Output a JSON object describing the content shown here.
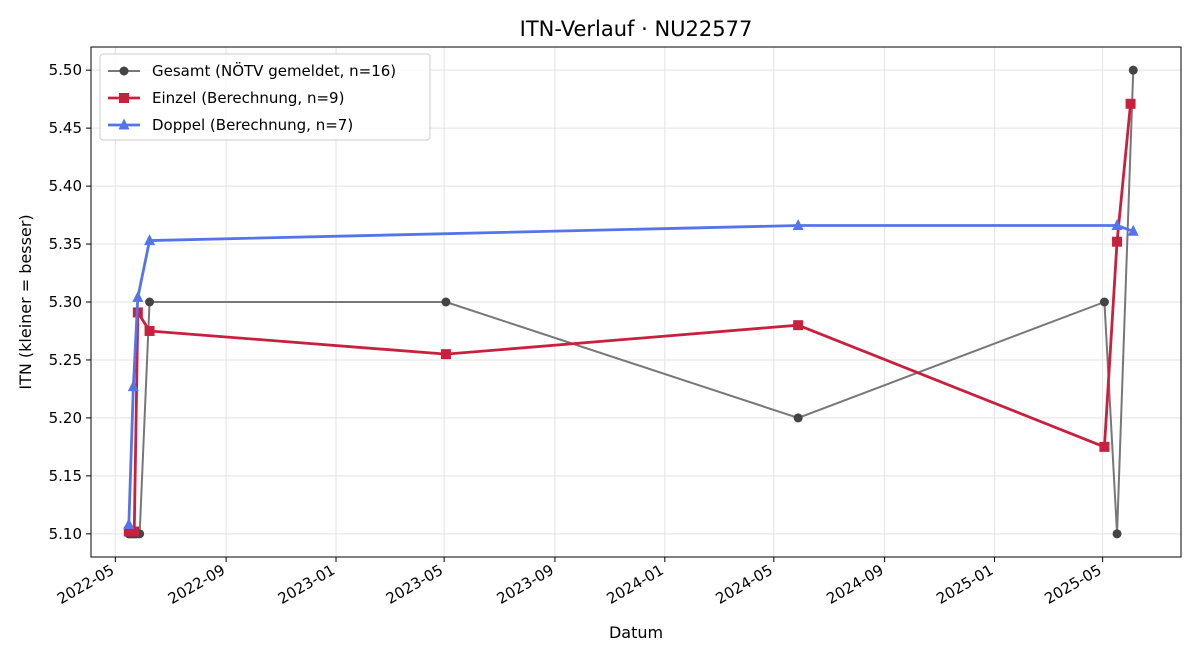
{
  "chart_data": {
    "type": "line",
    "title": "ITN-Verlauf · NU22577",
    "xlabel": "Datum",
    "ylabel": "ITN  (kleiner = besser)",
    "ylim": [
      5.08,
      5.52
    ],
    "xlim": [
      "2022-04-04",
      "2025-07-27"
    ],
    "x_is_date": true,
    "grid": true,
    "legend_position": "top-left",
    "x_ticks": [
      "2022-05",
      "2022-09",
      "2023-01",
      "2023-05",
      "2023-09",
      "2024-01",
      "2024-05",
      "2024-09",
      "2025-01",
      "2025-05"
    ],
    "x_tick_dates": [
      "2022-05-01",
      "2022-09-01",
      "2023-01-01",
      "2023-05-01",
      "2023-09-01",
      "2024-01-01",
      "2024-05-01",
      "2024-09-01",
      "2025-01-01",
      "2025-05-01"
    ],
    "y_ticks": [
      "5.10",
      "5.15",
      "5.20",
      "5.25",
      "5.30",
      "5.35",
      "5.40",
      "5.45",
      "5.50"
    ],
    "series": [
      {
        "name": "Gesamt (NÖTV gemeldet, n=16)",
        "color": "#777777",
        "marker_color": "#444444",
        "marker": "circle",
        "x": [
          "2022-05-16",
          "2022-05-18",
          "2022-05-20",
          "2022-05-22",
          "2022-05-24",
          "2022-05-28",
          "2022-06-08",
          "2023-05-03",
          "2024-05-28",
          "2025-05-03",
          "2025-05-17",
          "2025-06-04"
        ],
        "y": [
          5.1,
          5.1,
          5.1,
          5.1,
          5.1,
          5.1,
          5.3,
          5.3,
          5.2,
          5.3,
          5.1,
          5.5
        ]
      },
      {
        "name": "Einzel (Berechnung, n=9)",
        "color": "#c8213f",
        "marker_color": "#c8213f",
        "marker": "square",
        "x": [
          "2022-05-16",
          "2022-05-22",
          "2022-05-26",
          "2022-06-08",
          "2023-05-03",
          "2024-05-28",
          "2025-05-03",
          "2025-05-17",
          "2025-06-01"
        ],
        "y": [
          5.102,
          5.102,
          5.291,
          5.275,
          5.255,
          5.28,
          5.175,
          5.352,
          5.471
        ]
      },
      {
        "name": "Doppel (Berechnung, n=7)",
        "color": "#5574ea",
        "marker_color": "#5574ea",
        "marker": "triangle",
        "x": [
          "2022-05-16",
          "2022-05-21",
          "2022-05-26",
          "2022-06-08",
          "2024-05-28",
          "2025-05-17",
          "2025-06-04"
        ],
        "y": [
          5.108,
          5.227,
          5.304,
          5.353,
          5.366,
          5.366,
          5.361
        ]
      }
    ]
  }
}
